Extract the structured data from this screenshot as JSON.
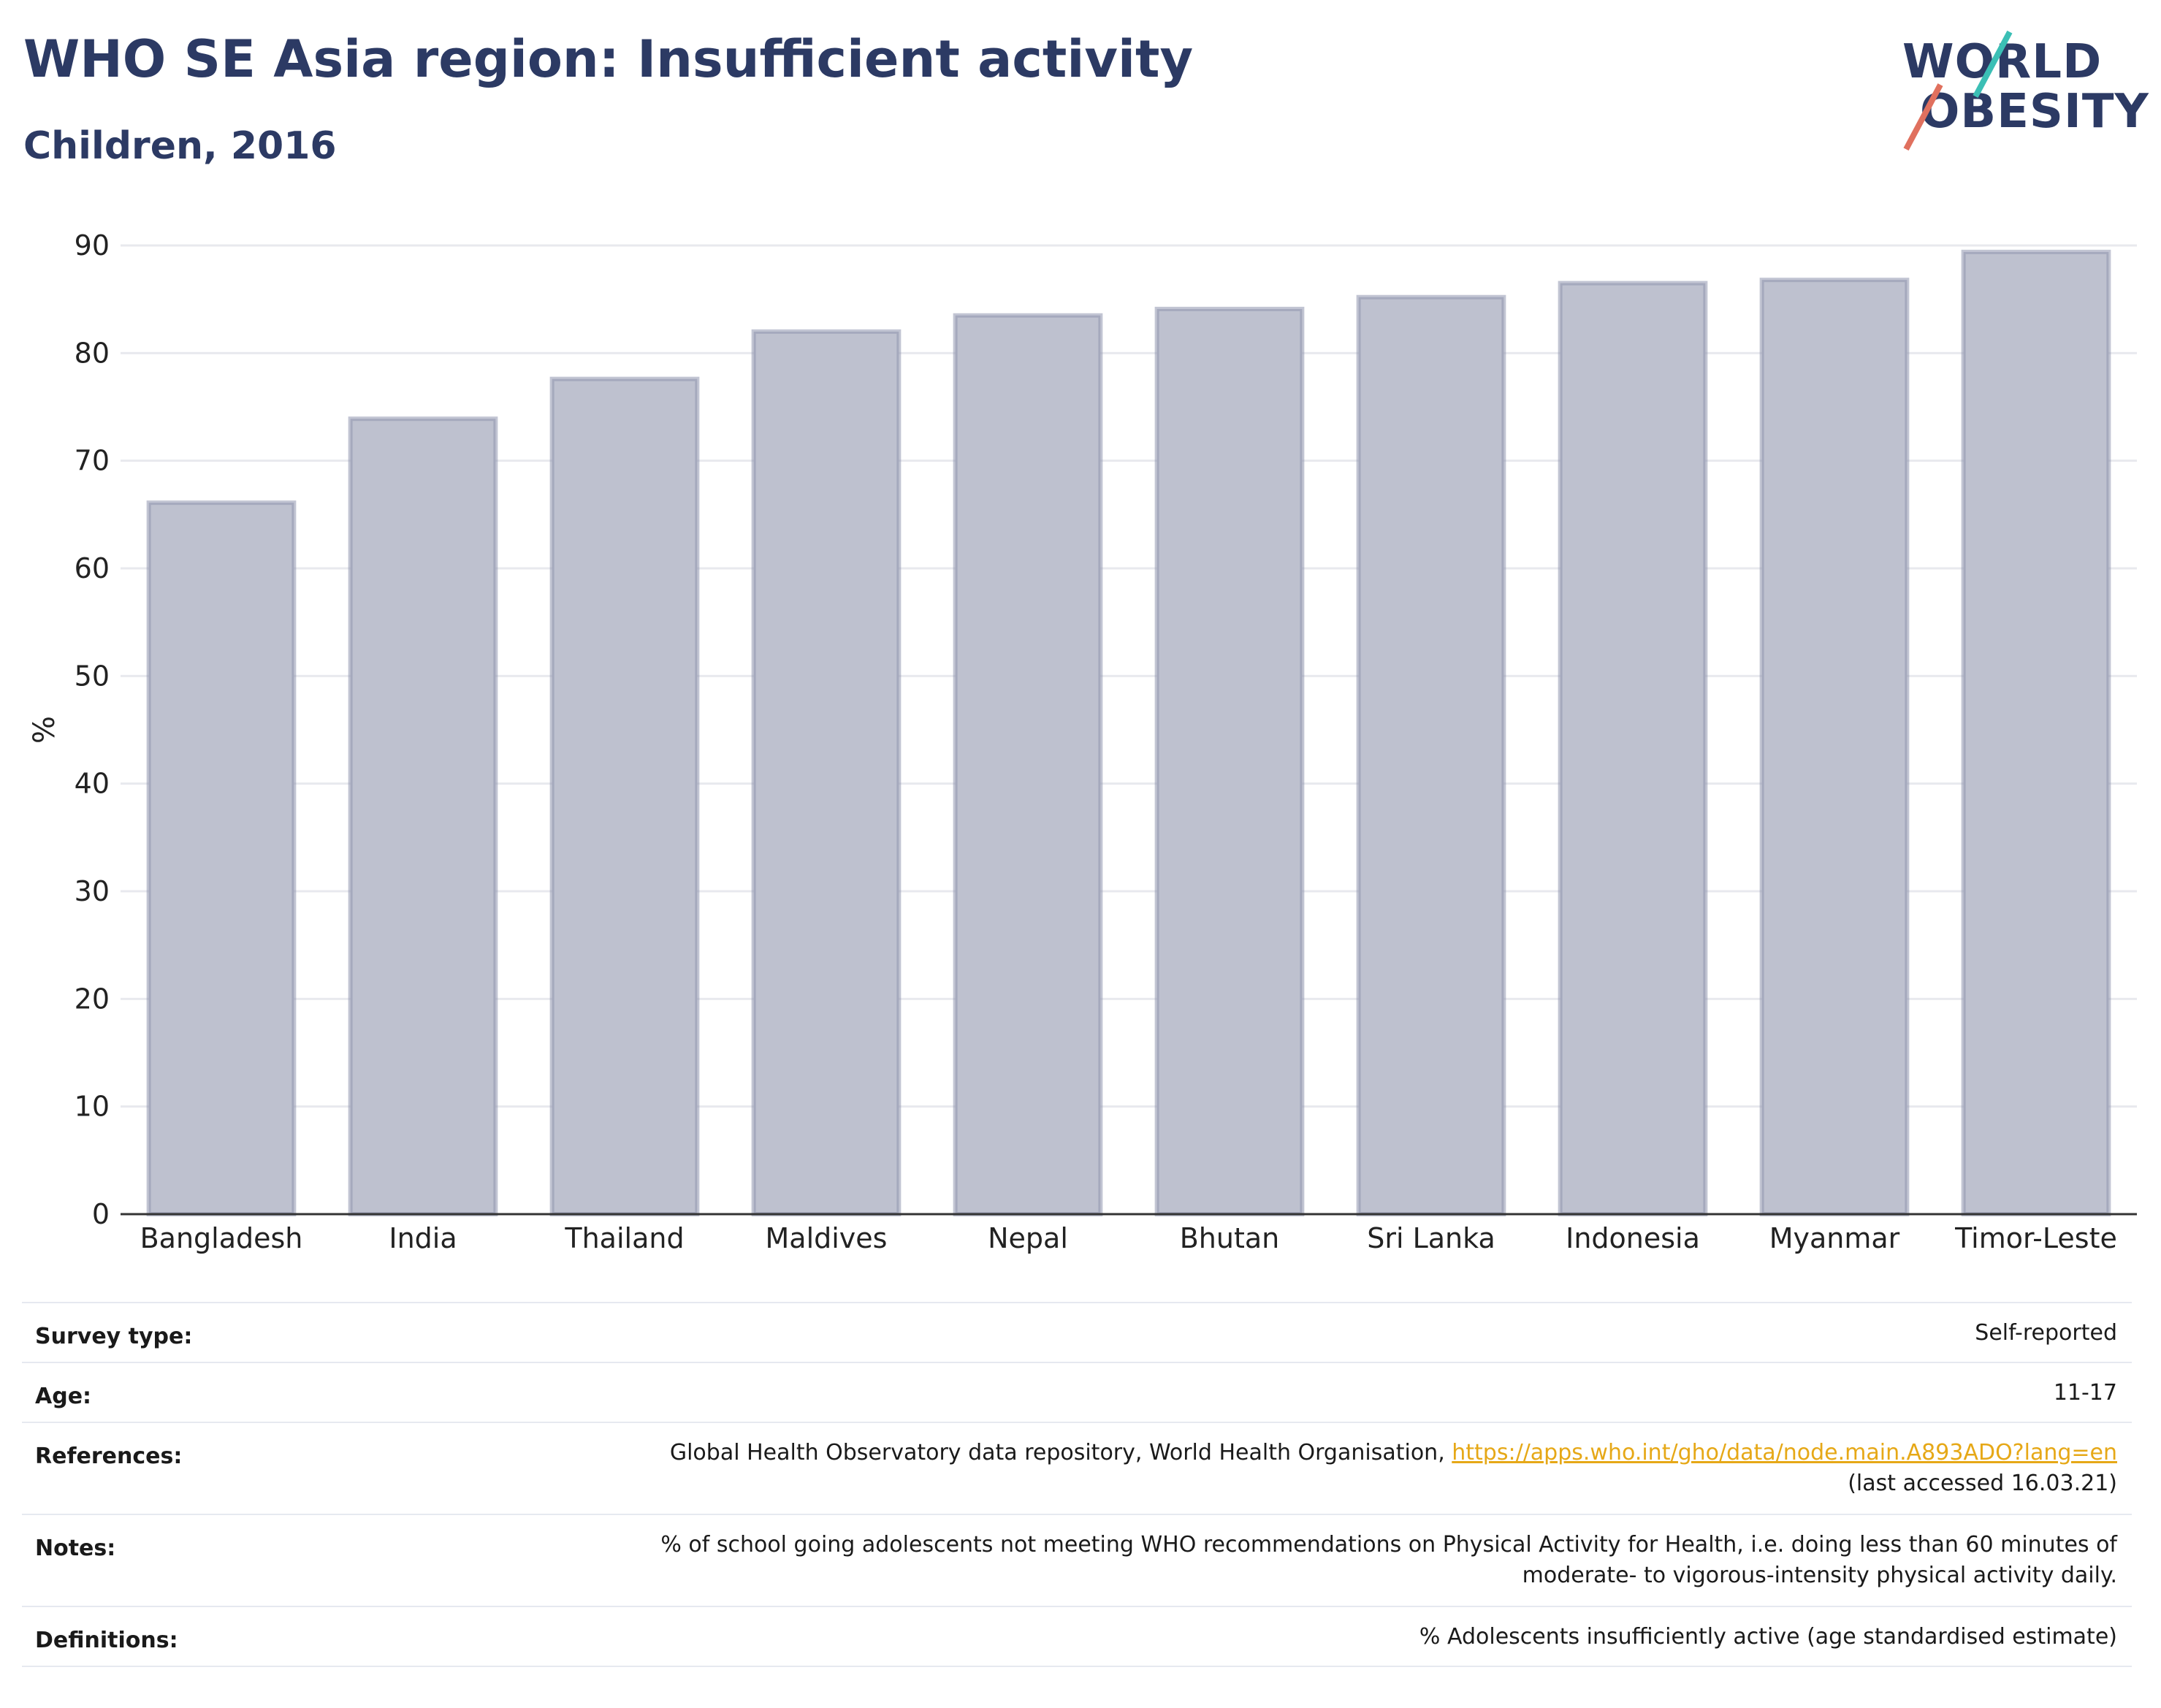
{
  "header": {
    "title": "WHO SE Asia region: Insufficient activity",
    "subtitle": "Children, 2016"
  },
  "logo": {
    "line1": "WORLD",
    "line2": "OBESITY",
    "accent_top": "#3bbfb5",
    "accent_bottom": "#e0705e"
  },
  "chart_data": {
    "type": "bar",
    "title": "WHO SE Asia region: Insufficient activity",
    "subtitle": "Children, 2016",
    "xlabel": "",
    "ylabel": "%",
    "categories": [
      "Bangladesh",
      "India",
      "Thailand",
      "Maldives",
      "Nepal",
      "Bhutan",
      "Sri Lanka",
      "Indonesia",
      "Myanmar",
      "Timor-Leste"
    ],
    "values": [
      66.1,
      73.9,
      77.6,
      82.0,
      83.5,
      84.1,
      85.2,
      86.5,
      86.8,
      89.4
    ],
    "ylim": [
      0,
      90
    ],
    "yticks": [
      0,
      10,
      20,
      30,
      40,
      50,
      60,
      70,
      80,
      90
    ],
    "grid": true,
    "colors": {
      "bar_fill": "#bec1cf",
      "bar_stroke": "#8f95ae",
      "grid": "#e8e9ee",
      "axis": "#333333"
    }
  },
  "info": {
    "survey_type": {
      "label": "Survey type:",
      "value": "Self-reported"
    },
    "age": {
      "label": "Age:",
      "value": "11-17"
    },
    "references": {
      "label": "References:",
      "text": "Global Health Observatory data repository, World Health Organisation, ",
      "link": "https://apps.who.int/gho/data/node.main.A893ADO?lang=en",
      "accessed": "(last accessed 16.03.21)"
    },
    "notes": {
      "label": "Notes:",
      "line1": "% of school going adolescents not meeting WHO recommendations on Physical Activity for Health, i.e. doing less than 60 minutes of",
      "line2": "moderate- to vigorous-intensity physical activity daily."
    },
    "definitions": {
      "label": "Definitions:",
      "value": "% Adolescents insufficiently active (age standardised estimate)"
    }
  }
}
